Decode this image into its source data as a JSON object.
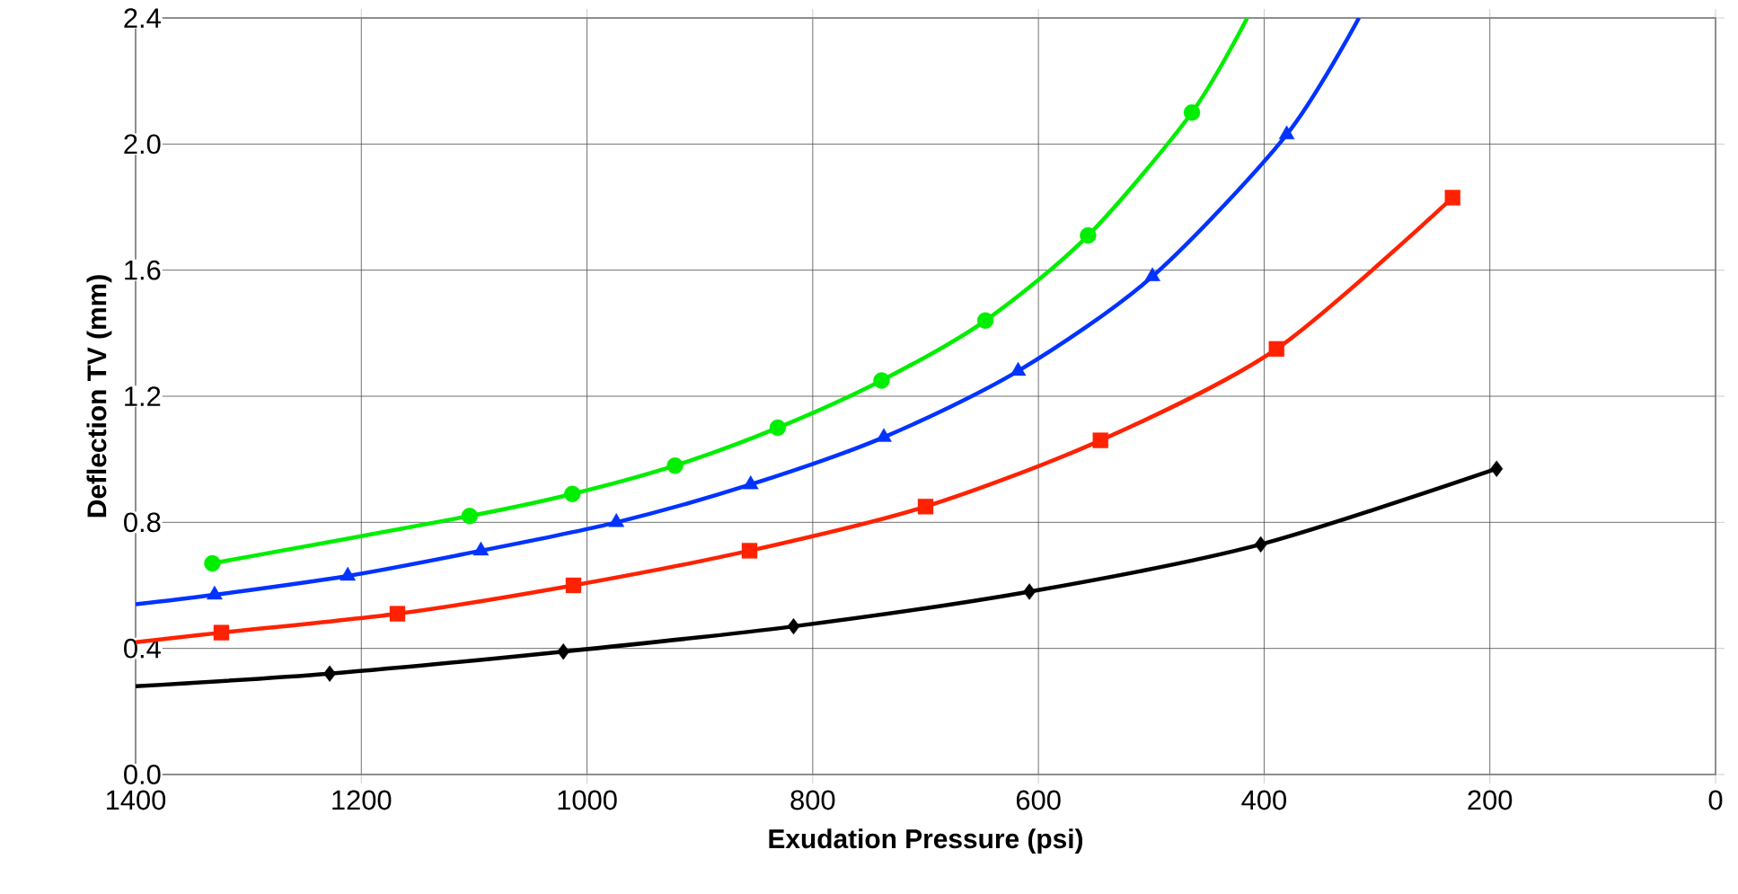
{
  "chart_data": {
    "type": "line",
    "xlabel": "Exudation Pressure (psi)",
    "ylabel": "Deflection TV (mm)",
    "xlim": [
      1400,
      0
    ],
    "ylim": [
      0,
      2.4
    ],
    "xticks": [
      1400,
      1200,
      1000,
      800,
      600,
      400,
      200,
      0
    ],
    "yticks": [
      {
        "value": 0,
        "label": "0.0"
      },
      0.4,
      0.8,
      1.2,
      1.6,
      {
        "value": 2,
        "label": "2.0"
      },
      2.4
    ],
    "grid": true,
    "series": [
      {
        "color": "#000000",
        "marker": "none",
        "x": [
          1400,
          1228,
          1021,
          817,
          608,
          403,
          194
        ],
        "values": [
          0.28,
          0.32,
          0.39,
          0.47,
          0.58,
          0.73,
          0.97
        ]
      },
      {
        "color": "#ff2200",
        "marker": "none",
        "x": [
          1400,
          1324,
          1168,
          1012,
          856,
          700,
          545,
          389,
          233
        ],
        "values": [
          0.42,
          0.45,
          0.51,
          0.6,
          0.71,
          0.85,
          1.06,
          1.35,
          1.83
        ]
      },
      {
        "color": "#0033ff",
        "marker": "none",
        "x": [
          1400,
          1330,
          1212,
          1094,
          974,
          855,
          737,
          618,
          499,
          380,
          316
        ],
        "values": [
          0.54,
          0.57,
          0.63,
          0.71,
          0.8,
          0.92,
          1.07,
          1.28,
          1.58,
          2.03,
          2.4
        ]
      },
      {
        "color": "#00ee00",
        "marker": "none",
        "x": [
          1332,
          1104,
          1013,
          922,
          831,
          739,
          647,
          556,
          464,
          415
        ],
        "values": [
          0.67,
          0.82,
          0.89,
          0.98,
          1.1,
          1.25,
          1.44,
          1.71,
          2.1,
          2.4
        ]
      },
      {
        "type": "scatter",
        "color": "#000000",
        "marker": "diamond",
        "x": [
          1228,
          1021,
          817,
          608,
          403,
          194
        ],
        "values": [
          0.32,
          0.39,
          0.47,
          0.58,
          0.73,
          0.97
        ]
      },
      {
        "type": "scatter",
        "color": "#ff2200",
        "marker": "square",
        "x": [
          1324,
          1168,
          1012,
          856,
          700,
          545,
          389,
          233
        ],
        "values": [
          0.45,
          0.51,
          0.6,
          0.71,
          0.85,
          1.06,
          1.35,
          1.83
        ]
      },
      {
        "type": "scatter",
        "color": "#0033ff",
        "marker": "triangle",
        "x": [
          1330,
          1212,
          1094,
          974,
          855,
          737,
          618,
          499,
          380
        ],
        "values": [
          0.57,
          0.63,
          0.71,
          0.8,
          0.92,
          1.07,
          1.28,
          1.58,
          2.03
        ]
      },
      {
        "type": "scatter",
        "color": "#00ee00",
        "marker": "circle",
        "x": [
          1332,
          1104,
          1013,
          922,
          831,
          739,
          647,
          556,
          464
        ],
        "values": [
          0.67,
          0.82,
          0.89,
          0.98,
          1.1,
          1.25,
          1.44,
          1.71,
          2.1
        ]
      }
    ]
  }
}
